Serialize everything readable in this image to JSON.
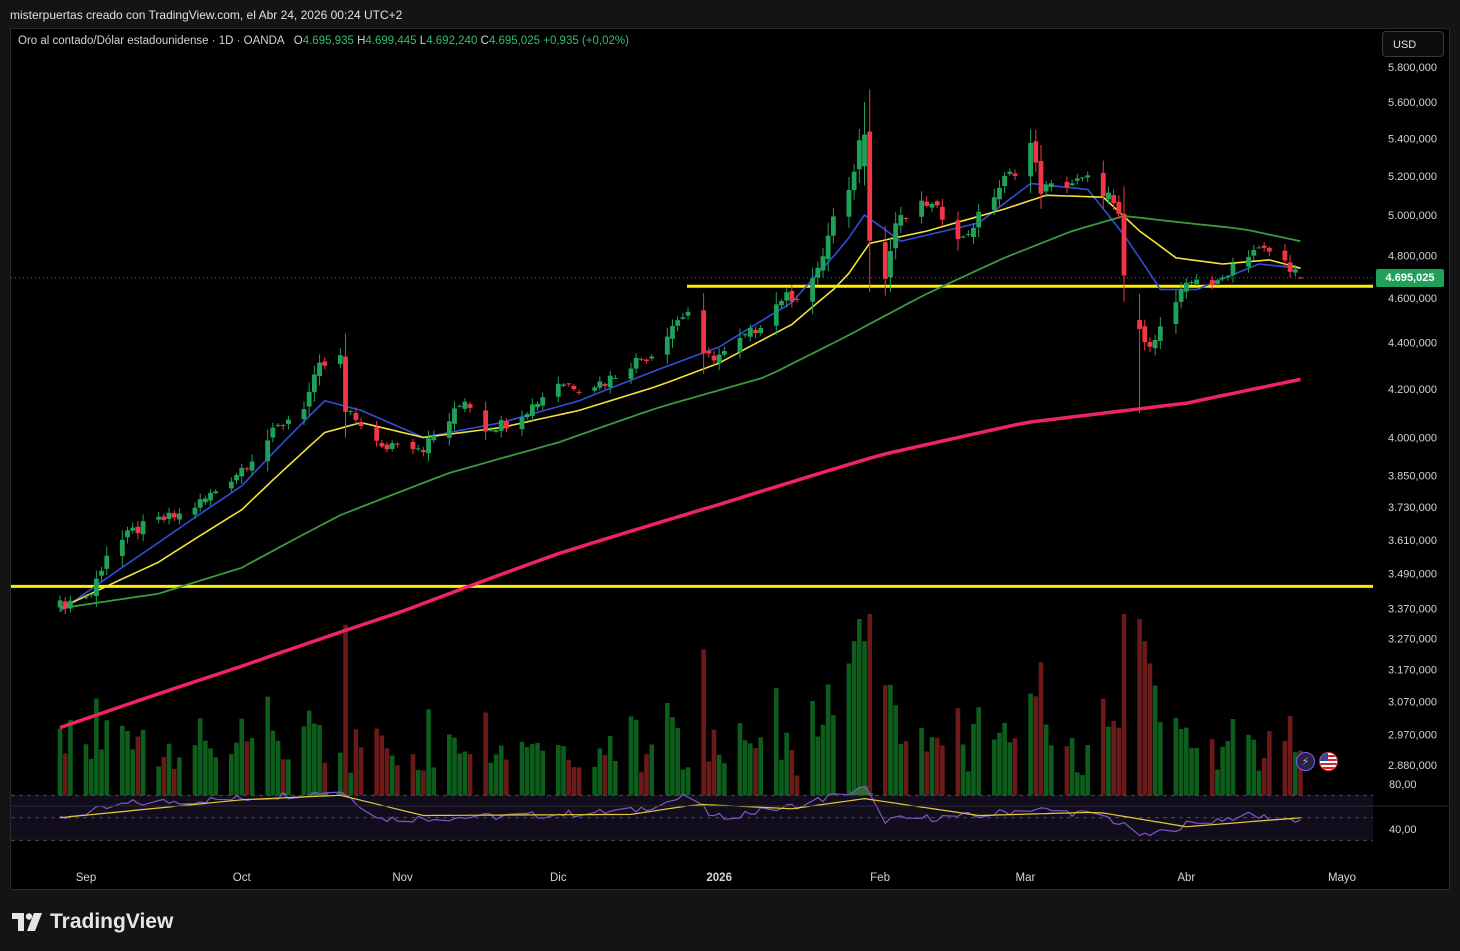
{
  "header": {
    "caption": "misterpuertas creado con TradingView.com, el Abr 24, 2026 00:24 UTC+2"
  },
  "legend": {
    "symbol": "Oro al contado/Dólar estadounidense · 1D · OANDA",
    "open_label": "O",
    "open_value": "4.695,935",
    "high_label": "H",
    "high_value": "4.699,445",
    "low_label": "L",
    "low_value": "4.692,240",
    "close_label": "C",
    "close_value": "4.695,025",
    "change": "+0,935 (+0,02%)"
  },
  "currency_button": "USD",
  "last_price": "4.695,025",
  "footer": {
    "brand": "TradingView"
  },
  "icons": {
    "flash": "flash-icon",
    "flag": "us-flag-icon",
    "logo": "tradingview-logo-icon"
  },
  "colors": {
    "background": "#000000",
    "up": "#1fa15a",
    "down": "#f23645",
    "ema_fast": "#2f4fd8",
    "ema_mid": "#f5e13a",
    "ema_slow": "#3c9a3c",
    "ema_200": "#f0245e",
    "level_line": "#ffee00",
    "rsi": "#7e57c2",
    "rsi_ma": "#e6c93a"
  },
  "chart_data": {
    "type": "candlestick",
    "symbol": "XAUUSD",
    "interval": "1D",
    "y_ticks": [
      "5.800,000",
      "5.600,000",
      "5.400,000",
      "5.200,000",
      "5.000,000",
      "4.800,000",
      "4.600,000",
      "4.400,000",
      "4.200,000",
      "4.000,000",
      "3.850,000",
      "3.730,000",
      "3.610,000",
      "3.490,000",
      "3.370,000",
      "3.270,000",
      "3.170,000",
      "3.070,000",
      "2.970,000",
      "2.880,000"
    ],
    "y_tick_values": [
      5800,
      5600,
      5400,
      5200,
      5000,
      4800,
      4600,
      4400,
      4200,
      4000,
      3850,
      3730,
      3610,
      3490,
      3370,
      3270,
      3170,
      3070,
      2970,
      2880
    ],
    "y_scale": "log",
    "x_ticks": [
      "Sep",
      "Oct",
      "Nov",
      "Dic",
      "2026",
      "Feb",
      "Mar",
      "Abr",
      "Mayo"
    ],
    "x_tick_dates": [
      "2025-09-01",
      "2025-10-01",
      "2025-11-01",
      "2025-12-01",
      "2026-01-01",
      "2026-02-01",
      "2026-03-01",
      "2026-04-01",
      "2026-05-01"
    ],
    "horizontal_levels": [
      4655,
      3445
    ],
    "close_path": [
      [
        "2025-08-27",
        3380
      ],
      [
        "2025-09-02",
        3420
      ],
      [
        "2025-09-05",
        3560
      ],
      [
        "2025-09-10",
        3640
      ],
      [
        "2025-09-15",
        3680
      ],
      [
        "2025-09-19",
        3700
      ],
      [
        "2025-09-24",
        3760
      ],
      [
        "2025-09-30",
        3860
      ],
      [
        "2025-10-03",
        3920
      ],
      [
        "2025-10-08",
        4040
      ],
      [
        "2025-10-13",
        4130
      ],
      [
        "2025-10-16",
        4290
      ],
      [
        "2025-10-20",
        4330
      ],
      [
        "2025-10-21",
        4100
      ],
      [
        "2025-10-24",
        4060
      ],
      [
        "2025-10-28",
        3950
      ],
      [
        "2025-10-31",
        3990
      ],
      [
        "2025-11-05",
        3960
      ],
      [
        "2025-11-10",
        4070
      ],
      [
        "2025-11-13",
        4160
      ],
      [
        "2025-11-17",
        4040
      ],
      [
        "2025-11-21",
        4060
      ],
      [
        "2025-11-26",
        4130
      ],
      [
        "2025-12-01",
        4230
      ],
      [
        "2025-12-05",
        4210
      ],
      [
        "2025-12-10",
        4230
      ],
      [
        "2025-12-15",
        4310
      ],
      [
        "2025-12-19",
        4350
      ],
      [
        "2025-12-23",
        4480
      ],
      [
        "2025-12-26",
        4540
      ],
      [
        "2025-12-29",
        4330
      ],
      [
        "2026-01-02",
        4350
      ],
      [
        "2026-01-08",
        4460
      ],
      [
        "2026-01-13",
        4600
      ],
      [
        "2026-01-16",
        4610
      ],
      [
        "2026-01-20",
        4720
      ],
      [
        "2026-01-23",
        4980
      ],
      [
        "2026-01-26",
        5100
      ],
      [
        "2026-01-28",
        5380
      ],
      [
        "2026-01-29",
        5420
      ],
      [
        "2026-01-30",
        4900
      ],
      [
        "2026-02-02",
        4690
      ],
      [
        "2026-02-04",
        4960
      ],
      [
        "2026-02-06",
        4990
      ],
      [
        "2026-02-10",
        5060
      ],
      [
        "2026-02-13",
        5000
      ],
      [
        "2026-02-17",
        4880
      ],
      [
        "2026-02-20",
        4990
      ],
      [
        "2026-02-25",
        5180
      ],
      [
        "2026-02-27",
        5230
      ],
      [
        "2026-03-02",
        5370
      ],
      [
        "2026-03-04",
        5130
      ],
      [
        "2026-03-09",
        5160
      ],
      [
        "2026-03-13",
        5180
      ],
      [
        "2026-03-17",
        5100
      ],
      [
        "2026-03-19",
        4980
      ],
      [
        "2026-03-20",
        4700
      ],
      [
        "2026-03-23",
        4460
      ],
      [
        "2026-03-24",
        4380
      ],
      [
        "2026-03-27",
        4460
      ],
      [
        "2026-03-31",
        4620
      ],
      [
        "2026-04-03",
        4700
      ],
      [
        "2026-04-07",
        4660
      ],
      [
        "2026-04-10",
        4760
      ],
      [
        "2026-04-14",
        4830
      ],
      [
        "2026-04-17",
        4820
      ],
      [
        "2026-04-21",
        4750
      ],
      [
        "2026-04-23",
        4695
      ]
    ],
    "key_ohlc": [
      {
        "date": "2026-01-29",
        "open": 5250,
        "high": 5600,
        "low": 5150,
        "close": 5420
      },
      {
        "date": "2026-03-23",
        "open": 4500,
        "high": 4620,
        "low": 4100,
        "close": 4460
      },
      {
        "date": "2026-04-23",
        "open": 4695.935,
        "high": 4699.445,
        "low": 4692.24,
        "close": 4695.025
      }
    ],
    "moving_averages": [
      {
        "key": "ema_fast",
        "path": [
          [
            "2025-08-27",
            3360
          ],
          [
            "2025-09-15",
            3600
          ],
          [
            "2025-10-01",
            3810
          ],
          [
            "2025-10-17",
            4150
          ],
          [
            "2025-10-24",
            4110
          ],
          [
            "2025-11-05",
            4000
          ],
          [
            "2025-11-20",
            4060
          ],
          [
            "2025-12-05",
            4150
          ],
          [
            "2025-12-20",
            4280
          ],
          [
            "2026-01-01",
            4380
          ],
          [
            "2026-01-15",
            4580
          ],
          [
            "2026-01-25",
            4850
          ],
          [
            "2026-01-29",
            5000
          ],
          [
            "2026-02-05",
            4870
          ],
          [
            "2026-02-20",
            4960
          ],
          [
            "2026-03-02",
            5160
          ],
          [
            "2026-03-13",
            5130
          ],
          [
            "2026-03-20",
            4900
          ],
          [
            "2026-03-27",
            4640
          ],
          [
            "2026-04-03",
            4640
          ],
          [
            "2026-04-15",
            4760
          ],
          [
            "2026-04-23",
            4740
          ]
        ]
      },
      {
        "key": "ema_mid",
        "path": [
          [
            "2025-08-27",
            3370
          ],
          [
            "2025-09-15",
            3530
          ],
          [
            "2025-10-01",
            3720
          ],
          [
            "2025-10-17",
            4020
          ],
          [
            "2025-10-24",
            4060
          ],
          [
            "2025-11-05",
            4000
          ],
          [
            "2025-11-20",
            4040
          ],
          [
            "2025-12-05",
            4110
          ],
          [
            "2025-12-20",
            4210
          ],
          [
            "2026-01-01",
            4310
          ],
          [
            "2026-01-15",
            4480
          ],
          [
            "2026-01-25",
            4680
          ],
          [
            "2026-01-30",
            4860
          ],
          [
            "2026-02-10",
            4920
          ],
          [
            "2026-02-25",
            5030
          ],
          [
            "2026-03-05",
            5100
          ],
          [
            "2026-03-16",
            5090
          ],
          [
            "2026-03-23",
            4920
          ],
          [
            "2026-03-30",
            4790
          ],
          [
            "2026-04-08",
            4760
          ],
          [
            "2026-04-17",
            4780
          ],
          [
            "2026-04-23",
            4740
          ]
        ]
      },
      {
        "key": "ema_slow",
        "path": [
          [
            "2025-08-27",
            3370
          ],
          [
            "2025-09-15",
            3420
          ],
          [
            "2025-10-01",
            3510
          ],
          [
            "2025-10-20",
            3700
          ],
          [
            "2025-11-10",
            3860
          ],
          [
            "2025-12-01",
            3980
          ],
          [
            "2025-12-20",
            4120
          ],
          [
            "2026-01-10",
            4250
          ],
          [
            "2026-01-25",
            4420
          ],
          [
            "2026-02-10",
            4620
          ],
          [
            "2026-02-25",
            4790
          ],
          [
            "2026-03-10",
            4920
          ],
          [
            "2026-03-20",
            4995
          ],
          [
            "2026-04-01",
            4960
          ],
          [
            "2026-04-12",
            4930
          ],
          [
            "2026-04-23",
            4870
          ]
        ]
      },
      {
        "key": "ema_200",
        "path": [
          [
            "2025-08-27",
            2990
          ],
          [
            "2025-10-01",
            3180
          ],
          [
            "2025-11-01",
            3360
          ],
          [
            "2025-12-01",
            3560
          ],
          [
            "2026-01-01",
            3740
          ],
          [
            "2026-02-01",
            3930
          ],
          [
            "2026-03-01",
            4060
          ],
          [
            "2026-04-01",
            4140
          ],
          [
            "2026-04-23",
            4240
          ]
        ]
      }
    ],
    "rsi": {
      "levels": [
        70,
        50,
        30
      ],
      "ticks": [
        "80,00",
        "40,00"
      ],
      "tick_values": [
        80,
        40
      ],
      "path": [
        [
          "2025-08-27",
          50
        ],
        [
          "2025-09-10",
          63
        ],
        [
          "2025-10-01",
          67
        ],
        [
          "2025-10-20",
          74
        ],
        [
          "2025-10-28",
          49
        ],
        [
          "2025-11-20",
          51
        ],
        [
          "2025-12-15",
          56
        ],
        [
          "2025-12-26",
          69
        ],
        [
          "2025-12-31",
          50
        ],
        [
          "2026-01-15",
          60
        ],
        [
          "2026-01-29",
          76
        ],
        [
          "2026-02-02",
          48
        ],
        [
          "2026-02-20",
          52
        ],
        [
          "2026-03-02",
          58
        ],
        [
          "2026-03-16",
          52
        ],
        [
          "2026-03-24",
          33
        ],
        [
          "2026-04-01",
          44
        ],
        [
          "2026-04-12",
          52
        ],
        [
          "2026-04-23",
          48
        ]
      ],
      "ma_path": [
        [
          "2025-08-27",
          50
        ],
        [
          "2025-10-01",
          66
        ],
        [
          "2025-10-20",
          70
        ],
        [
          "2025-11-05",
          52
        ],
        [
          "2025-12-15",
          53
        ],
        [
          "2025-12-28",
          62
        ],
        [
          "2026-01-15",
          58
        ],
        [
          "2026-01-29",
          67
        ],
        [
          "2026-02-20",
          52
        ],
        [
          "2026-03-15",
          55
        ],
        [
          "2026-04-01",
          42
        ],
        [
          "2026-04-23",
          50
        ]
      ]
    },
    "volume": {
      "relative_peaks": [
        [
          "2026-01-28",
          1.0
        ],
        [
          "2026-03-23",
          1.0
        ]
      ]
    }
  }
}
